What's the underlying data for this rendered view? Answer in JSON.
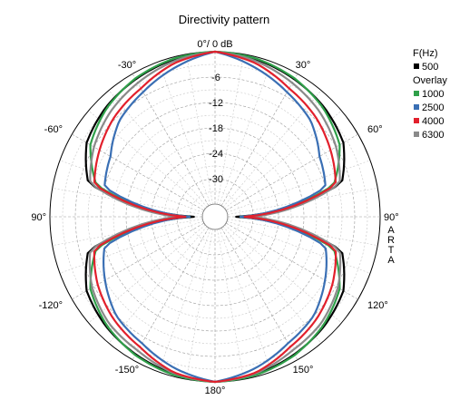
{
  "chart_data": {
    "type": "polar-line",
    "title": "Directivity pattern",
    "top_label": "0°/ 0 dB",
    "radial_ticks": [
      {
        "value": -6,
        "label": "-6"
      },
      {
        "value": -12,
        "label": "-12"
      },
      {
        "value": -18,
        "label": "-18"
      },
      {
        "value": -24,
        "label": "-24"
      },
      {
        "value": -30,
        "label": "-30"
      }
    ],
    "radial_range": [
      -36,
      0
    ],
    "angle_labels": [
      {
        "angle": 0,
        "label": "0°/ 0 dB"
      },
      {
        "angle": 30,
        "label": "30°"
      },
      {
        "angle": 60,
        "label": "60°"
      },
      {
        "angle": 90,
        "label": "90°"
      },
      {
        "angle": 120,
        "label": "120°"
      },
      {
        "angle": 150,
        "label": "150°"
      },
      {
        "angle": 180,
        "label": "180°"
      },
      {
        "angle": -150,
        "label": "-150°"
      },
      {
        "angle": -120,
        "label": "-120°"
      },
      {
        "angle": -90,
        "label": "90°"
      },
      {
        "angle": -60,
        "label": "-60°"
      },
      {
        "angle": -30,
        "label": "-30°"
      }
    ],
    "grid": true,
    "side_text": [
      "A",
      "R",
      "T",
      "A"
    ],
    "legend": {
      "position": "right",
      "header": "F(Hz)",
      "overlay_label": "Overlay"
    },
    "angles_deg": [
      0,
      15,
      30,
      45,
      60,
      75,
      90,
      105,
      120,
      135,
      150,
      165,
      180
    ],
    "series": [
      {
        "name": "500",
        "color": "#000000",
        "overlay": false,
        "values": [
          0,
          -0.6,
          -1.5,
          -2.5,
          -4.0,
          -8.0,
          -34,
          -8.0,
          -4.0,
          -2.5,
          -1.5,
          -0.6,
          0
        ]
      },
      {
        "name": "1000",
        "color": "#2fa04a",
        "overlay": true,
        "values": [
          0,
          -0.4,
          -1.3,
          -2.8,
          -5.0,
          -10.0,
          -33,
          -10.0,
          -5.0,
          -2.8,
          -1.3,
          -0.4,
          0
        ]
      },
      {
        "name": "2500",
        "color": "#3a6fb4",
        "overlay": true,
        "values": [
          0,
          -2.5,
          -5.0,
          -7.0,
          -10.5,
          -12.0,
          -33,
          -12.0,
          -9.0,
          -6.0,
          -4.5,
          -2.0,
          0
        ]
      },
      {
        "name": "4000",
        "color": "#e2202c",
        "overlay": true,
        "values": [
          0,
          -1.5,
          -4.0,
          -5.5,
          -7.5,
          -9.5,
          -32,
          -9.5,
          -7.0,
          -5.0,
          -3.5,
          -1.0,
          0
        ]
      },
      {
        "name": "6300",
        "color": "#8a8a8a",
        "overlay": true,
        "values": [
          0,
          -1.0,
          -2.5,
          -4.0,
          -6.0,
          -8.5,
          -30,
          -8.5,
          -5.5,
          -3.5,
          -2.5,
          -0.8,
          0
        ]
      }
    ]
  }
}
